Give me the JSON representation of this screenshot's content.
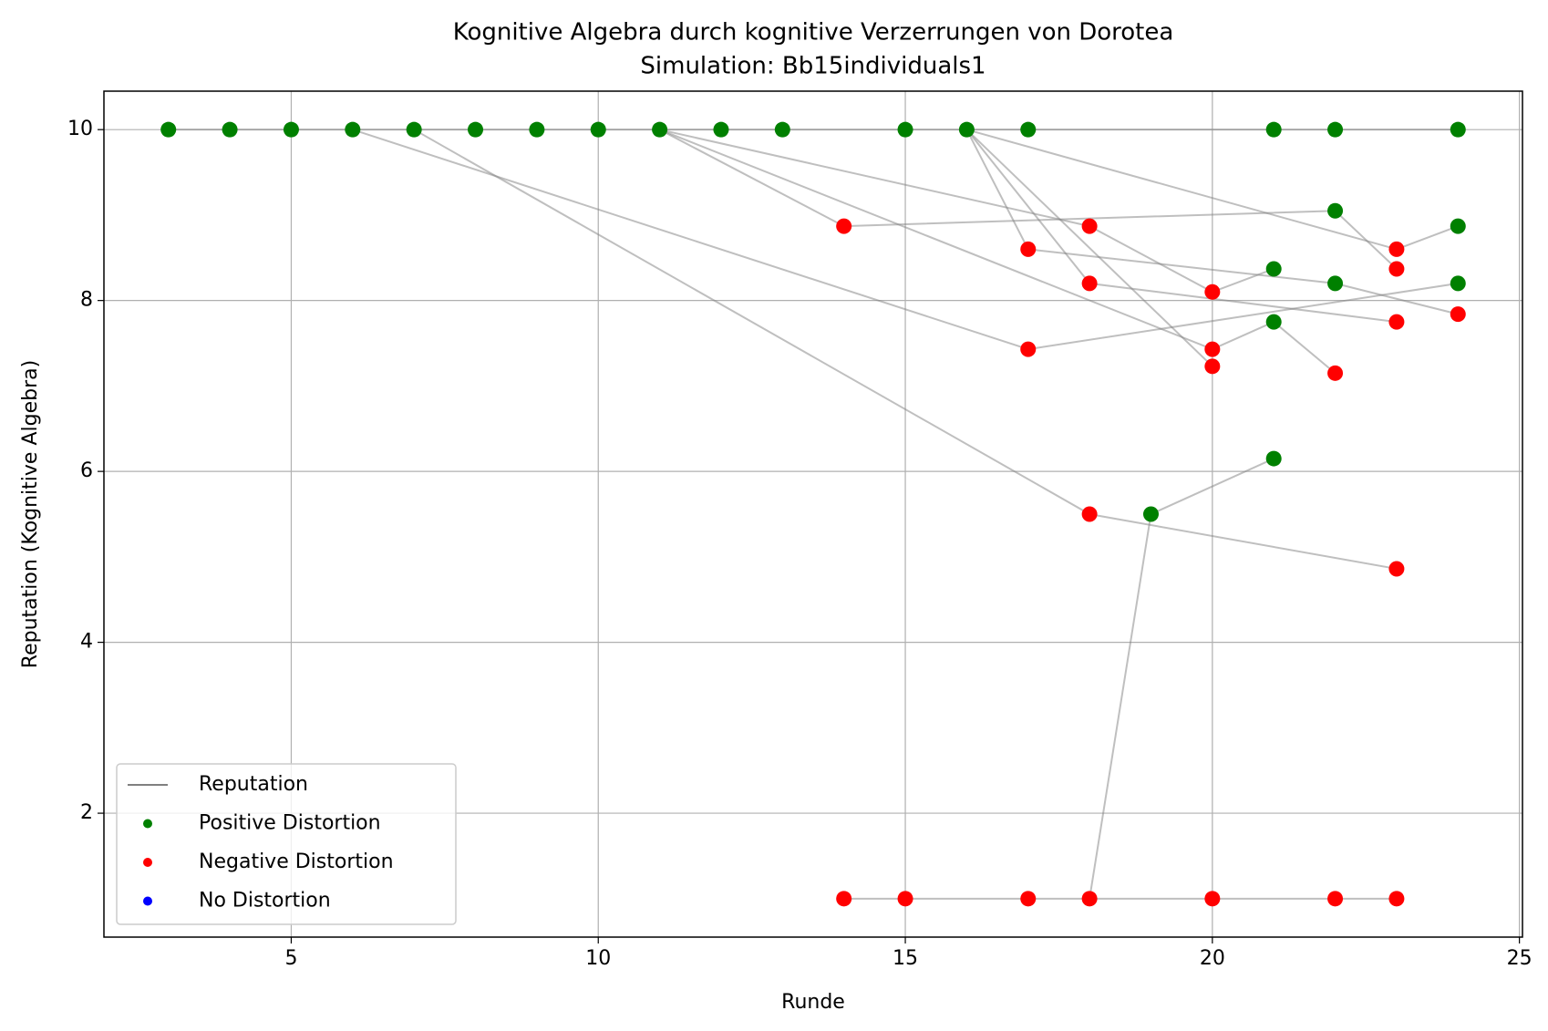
{
  "chart_data": {
    "type": "line",
    "title": "Kognitive Algebra durch kognitive Verzerrungen von Dorotea",
    "subtitle": "Simulation: Bb15individuals1",
    "xlabel": "Runde",
    "ylabel": "Reputation (Kognitive Algebra)",
    "xlim": [
      1.95,
      25.05
    ],
    "ylim": [
      0.55,
      10.45
    ],
    "xticks": [
      5,
      10,
      15,
      20,
      25
    ],
    "yticks": [
      2,
      4,
      6,
      8,
      10
    ],
    "grid": true,
    "legend": "lower left",
    "series": [
      {
        "name": "Reputation",
        "color": "#808080",
        "alpha": 0.5,
        "lines": [
          {
            "x": [
              3,
              24
            ],
            "y": [
              10,
              10
            ]
          },
          {
            "x": [
              6,
              17,
              24
            ],
            "y": [
              10,
              7.43,
              8.2
            ]
          },
          {
            "x": [
              7,
              18,
              23
            ],
            "y": [
              10,
              5.5,
              4.86
            ]
          },
          {
            "x": [
              14,
              15,
              17,
              18,
              19,
              21
            ],
            "y": [
              1,
              1,
              1,
              1,
              5.5,
              6.15
            ]
          },
          {
            "x": [
              18,
              20,
              22,
              23
            ],
            "y": [
              1,
              1,
              1,
              1
            ]
          },
          {
            "x": [
              11,
              14,
              22,
              23
            ],
            "y": [
              10,
              8.87,
              9.05,
              8.37
            ]
          },
          {
            "x": [
              16,
              23,
              24
            ],
            "y": [
              10,
              8.6,
              8.87
            ]
          },
          {
            "x": [
              11,
              18,
              20,
              21
            ],
            "y": [
              10,
              8.87,
              8.1,
              8.37
            ]
          },
          {
            "x": [
              11,
              20,
              21,
              22
            ],
            "y": [
              10,
              7.43,
              7.75,
              7.15
            ]
          },
          {
            "x": [
              16,
              17,
              22,
              24
            ],
            "y": [
              10,
              8.6,
              8.2,
              7.84
            ]
          },
          {
            "x": [
              16,
              18,
              23
            ],
            "y": [
              10,
              8.2,
              7.75
            ]
          },
          {
            "x": [
              16,
              20
            ],
            "y": [
              10,
              7.23
            ]
          }
        ]
      },
      {
        "name": "Positive Distortion",
        "color": "#008000",
        "x": [
          3,
          4,
          5,
          6,
          7,
          8,
          9,
          10,
          11,
          12,
          13,
          15,
          16,
          17,
          21,
          22,
          24,
          22,
          24,
          21,
          22,
          24,
          21,
          21,
          19
        ],
        "y": [
          10,
          10,
          10,
          10,
          10,
          10,
          10,
          10,
          10,
          10,
          10,
          10,
          10,
          10,
          10,
          10,
          10,
          9.05,
          8.87,
          8.37,
          8.2,
          8.2,
          7.75,
          6.15,
          5.5
        ]
      },
      {
        "name": "Negative Distortion",
        "color": "#ff0000",
        "x": [
          14,
          17,
          18,
          18,
          20,
          23,
          23,
          17,
          20,
          20,
          23,
          24,
          22,
          18,
          23,
          14,
          15,
          17,
          18,
          20,
          22,
          23
        ],
        "y": [
          8.87,
          8.6,
          8.87,
          8.2,
          8.1,
          8.6,
          8.37,
          7.43,
          7.43,
          7.23,
          7.75,
          7.84,
          7.15,
          5.5,
          4.86,
          1,
          1,
          1,
          1,
          1,
          1,
          1
        ]
      },
      {
        "name": "No Distortion",
        "color": "#0000ff",
        "x": [],
        "y": []
      }
    ]
  }
}
